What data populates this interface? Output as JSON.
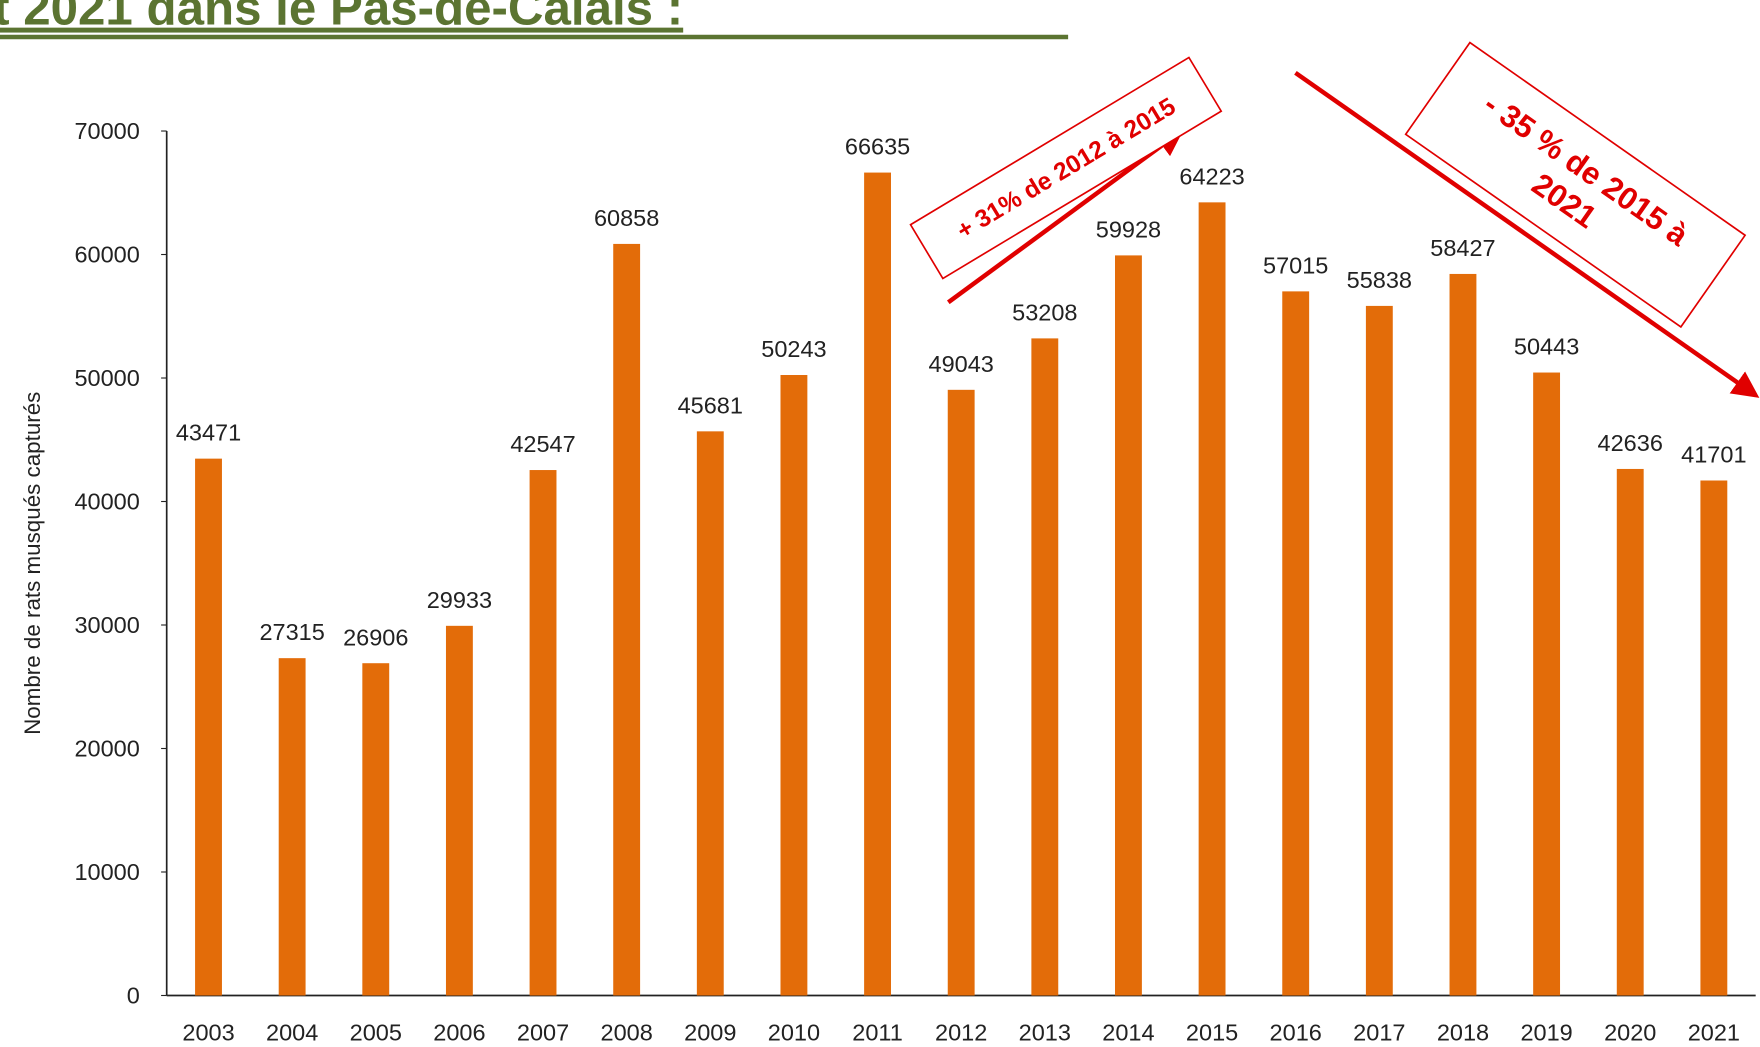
{
  "chart_data": {
    "type": "bar",
    "title": "t 2021 dans le Pas-de-Calais :",
    "y_label": "Nombre de rats musqués capturés",
    "categories": [
      "2003",
      "2004",
      "2005",
      "2006",
      "2007",
      "2008",
      "2009",
      "2010",
      "2011",
      "2012",
      "2013",
      "2014",
      "2015",
      "2016",
      "2017",
      "2018",
      "2019",
      "2020",
      "2021"
    ],
    "values": [
      43471,
      27315,
      26906,
      29933,
      42547,
      60858,
      45681,
      50243,
      66635,
      49043,
      53208,
      59928,
      64223,
      57015,
      55838,
      58427,
      50443,
      42636,
      41701
    ],
    "color": "#e36c09",
    "ylim": [
      0,
      70000
    ],
    "yticks": [
      0,
      10000,
      20000,
      30000,
      40000,
      50000,
      60000,
      70000
    ],
    "grid": false,
    "annotations": [
      {
        "lines": [
          "+ 31% de 2012 à 2015"
        ],
        "color": "#e00000"
      },
      {
        "lines": [
          "- 35 % de 2015 à",
          "2021"
        ],
        "color": "#e00000"
      }
    ]
  }
}
